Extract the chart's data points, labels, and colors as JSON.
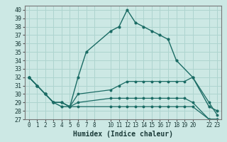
{
  "xlabel": "Humidex (Indice chaleur)",
  "background_color": "#cce8e4",
  "grid_color": "#aed4cf",
  "line_color": "#1a6b64",
  "xlim": [
    -0.5,
    23.5
  ],
  "ylim": [
    27,
    40.5
  ],
  "yticks": [
    27,
    28,
    29,
    30,
    31,
    32,
    33,
    34,
    35,
    36,
    37,
    38,
    39,
    40
  ],
  "xticks": [
    0,
    1,
    2,
    3,
    4,
    5,
    6,
    7,
    8,
    10,
    11,
    12,
    13,
    14,
    15,
    16,
    17,
    18,
    19,
    20,
    22,
    23
  ],
  "xtick_labels": [
    "0",
    "1",
    "2",
    "3",
    "4",
    "5",
    "6",
    "7",
    "8",
    "10",
    "11",
    "12",
    "13",
    "14",
    "15",
    "16",
    "17",
    "18",
    "19",
    "20",
    "22",
    "23"
  ],
  "series": [
    {
      "x": [
        0,
        1,
        2,
        3,
        4,
        5,
        6,
        7,
        10,
        11,
        12,
        13,
        14,
        15,
        16,
        17,
        18,
        20,
        22,
        23
      ],
      "y": [
        32,
        31,
        30,
        29,
        28.5,
        28.5,
        32,
        35,
        37.5,
        38,
        40,
        38.5,
        38,
        37.5,
        37,
        36.5,
        34,
        32,
        28.5,
        28
      ]
    },
    {
      "x": [
        0,
        1,
        2,
        3,
        4,
        5,
        6,
        10,
        11,
        12,
        13,
        14,
        15,
        16,
        17,
        18,
        19,
        20,
        22,
        23
      ],
      "y": [
        32,
        31,
        30,
        29,
        29,
        28.5,
        30,
        30.5,
        31,
        31.5,
        31.5,
        31.5,
        31.5,
        31.5,
        31.5,
        31.5,
        31.5,
        32,
        29,
        27.5
      ]
    },
    {
      "x": [
        0,
        1,
        2,
        3,
        4,
        5,
        6,
        10,
        11,
        12,
        13,
        14,
        15,
        16,
        17,
        18,
        19,
        20,
        22,
        23
      ],
      "y": [
        32,
        31,
        30,
        29,
        29,
        28.5,
        29,
        29.5,
        29.5,
        29.5,
        29.5,
        29.5,
        29.5,
        29.5,
        29.5,
        29.5,
        29.5,
        29,
        27,
        27
      ]
    },
    {
      "x": [
        0,
        1,
        2,
        3,
        4,
        5,
        6,
        10,
        11,
        12,
        13,
        14,
        15,
        16,
        17,
        18,
        19,
        20,
        22,
        23
      ],
      "y": [
        32,
        31,
        30,
        29,
        29,
        28.5,
        28.5,
        28.5,
        28.5,
        28.5,
        28.5,
        28.5,
        28.5,
        28.5,
        28.5,
        28.5,
        28.5,
        28.5,
        27,
        27
      ]
    }
  ]
}
